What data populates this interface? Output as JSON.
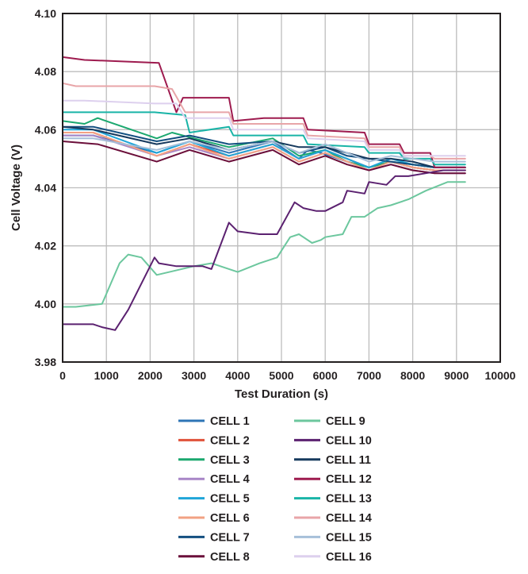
{
  "chart_data": {
    "type": "line",
    "title": "",
    "xlabel": "Test Duration (s)",
    "ylabel": "Cell Voltage (V)",
    "xlim": [
      0,
      10000
    ],
    "ylim": [
      3.98,
      4.1
    ],
    "x_ticks": [
      0,
      1000,
      2000,
      3000,
      4000,
      5000,
      6000,
      7000,
      8000,
      9000,
      10000
    ],
    "x_tick_labels": [
      "0",
      "1000",
      "2000",
      "3000",
      "4000",
      "5000",
      "6000",
      "7000",
      "8000",
      "9000",
      "10000"
    ],
    "y_ticks": [
      3.98,
      4.0,
      4.02,
      4.04,
      4.06,
      4.08,
      4.1
    ],
    "y_tick_labels": [
      "3.98",
      "4.00",
      "4.02",
      "4.04",
      "4.06",
      "4.08",
      "4.10"
    ],
    "grid": true,
    "legend_position": "bottom",
    "series": [
      {
        "name": "CELL 1",
        "color": "#2e75b6",
        "x": [
          0,
          700,
          2150,
          2900,
          3800,
          4800,
          5400,
          5600,
          5900,
          6500,
          7000,
          7500,
          8000,
          8500,
          9200
        ],
        "y": [
          4.058,
          4.058,
          4.052,
          4.056,
          4.052,
          4.056,
          4.05,
          4.053,
          4.052,
          4.049,
          4.047,
          4.049,
          4.047,
          4.046,
          4.046
        ]
      },
      {
        "name": "CELL 2",
        "color": "#e0523a",
        "x": [
          0,
          700,
          2150,
          2900,
          3800,
          4800,
          5400,
          6000,
          6500,
          7000,
          7500,
          8000,
          8500,
          9200
        ],
        "y": [
          4.059,
          4.059,
          4.051,
          4.055,
          4.051,
          4.055,
          4.05,
          4.053,
          4.05,
          4.047,
          4.049,
          4.047,
          4.046,
          4.046
        ]
      },
      {
        "name": "CELL 3",
        "color": "#1ba86f",
        "x": [
          0,
          500,
          800,
          2150,
          2500,
          3000,
          3800,
          4800,
          5400,
          6000,
          6500,
          7000,
          7500,
          8000,
          8500,
          9200
        ],
        "y": [
          4.063,
          4.062,
          4.064,
          4.057,
          4.059,
          4.057,
          4.054,
          4.057,
          4.051,
          4.053,
          4.049,
          4.047,
          4.049,
          4.048,
          4.047,
          4.047
        ]
      },
      {
        "name": "CELL 4",
        "color": "#a886c7",
        "x": [
          0,
          700,
          2150,
          2900,
          3800,
          4800,
          5400,
          6000,
          6500,
          7000,
          7500,
          8000,
          8500,
          9200
        ],
        "y": [
          4.058,
          4.058,
          4.051,
          4.054,
          4.05,
          4.054,
          4.049,
          4.052,
          4.049,
          4.046,
          4.048,
          4.046,
          4.045,
          4.045
        ]
      },
      {
        "name": "CELL 5",
        "color": "#1fa5d8",
        "x": [
          0,
          700,
          2150,
          2900,
          3800,
          4800,
          5400,
          6000,
          6500,
          7000,
          7500,
          8000,
          8500,
          9200
        ],
        "y": [
          4.06,
          4.06,
          4.052,
          4.056,
          4.051,
          4.055,
          4.05,
          4.053,
          4.05,
          4.047,
          4.05,
          4.048,
          4.047,
          4.047
        ]
      },
      {
        "name": "CELL 6",
        "color": "#f2a183",
        "x": [
          0,
          700,
          2150,
          2900,
          3800,
          4800,
          5400,
          6000,
          6500,
          7000,
          7500,
          8000,
          8500,
          9200
        ],
        "y": [
          4.059,
          4.059,
          4.051,
          4.055,
          4.05,
          4.054,
          4.049,
          4.052,
          4.049,
          4.046,
          4.049,
          4.047,
          4.046,
          4.046
        ]
      },
      {
        "name": "CELL 7",
        "color": "#134f80",
        "x": [
          0,
          700,
          2150,
          2900,
          3800,
          4800,
          5400,
          6000,
          6500,
          7000,
          7500,
          8000,
          8500,
          9200
        ],
        "y": [
          4.061,
          4.061,
          4.056,
          4.058,
          4.055,
          4.056,
          4.052,
          4.054,
          4.051,
          4.05,
          4.049,
          4.048,
          4.047,
          4.047
        ]
      },
      {
        "name": "CELL 8",
        "color": "#6b0f3a",
        "x": [
          0,
          800,
          2150,
          2900,
          3800,
          4800,
          5400,
          6000,
          6500,
          7000,
          7500,
          8000,
          8500,
          9200
        ],
        "y": [
          4.056,
          4.055,
          4.049,
          4.053,
          4.049,
          4.053,
          4.048,
          4.051,
          4.048,
          4.046,
          4.048,
          4.046,
          4.045,
          4.045
        ]
      },
      {
        "name": "CELL 9",
        "color": "#6cc79e",
        "x": [
          0,
          300,
          900,
          1300,
          1500,
          1800,
          2150,
          3000,
          3400,
          4000,
          4500,
          4900,
          5200,
          5400,
          5700,
          5900,
          6000,
          6400,
          6600,
          6900,
          7200,
          7500,
          7900,
          8300,
          8800,
          9200
        ],
        "y": [
          3.999,
          3.999,
          4.0,
          4.014,
          4.017,
          4.016,
          4.01,
          4.013,
          4.014,
          4.011,
          4.014,
          4.016,
          4.023,
          4.024,
          4.021,
          4.022,
          4.023,
          4.024,
          4.03,
          4.03,
          4.033,
          4.034,
          4.036,
          4.039,
          4.042,
          4.042
        ]
      },
      {
        "name": "CELL 10",
        "color": "#5b2170",
        "x": [
          0,
          700,
          900,
          1200,
          1500,
          2100,
          2200,
          2600,
          3200,
          3400,
          3800,
          4000,
          4500,
          4900,
          5300,
          5500,
          5800,
          6000,
          6400,
          6500,
          6900,
          7000,
          7400,
          7600,
          7900,
          8300,
          8700,
          9200
        ],
        "y": [
          3.993,
          3.993,
          3.992,
          3.991,
          3.998,
          4.016,
          4.014,
          4.013,
          4.013,
          4.012,
          4.028,
          4.025,
          4.024,
          4.024,
          4.035,
          4.033,
          4.032,
          4.032,
          4.035,
          4.039,
          4.038,
          4.042,
          4.041,
          4.044,
          4.044,
          4.045,
          4.046,
          4.046
        ]
      },
      {
        "name": "CELL 11",
        "color": "#173a5e",
        "x": [
          0,
          700,
          2150,
          2900,
          3800,
          4800,
          5400,
          6000,
          6500,
          7000,
          7500,
          8000,
          8500,
          9200
        ],
        "y": [
          4.061,
          4.06,
          4.055,
          4.057,
          4.053,
          4.056,
          4.054,
          4.054,
          4.052,
          4.05,
          4.05,
          4.049,
          4.047,
          4.047
        ]
      },
      {
        "name": "CELL 12",
        "color": "#9e1b4f",
        "x": [
          0,
          500,
          2200,
          2600,
          2750,
          3800,
          3900,
          4600,
          5500,
          5600,
          6900,
          7000,
          7700,
          7800,
          8400,
          8500,
          9200
        ],
        "y": [
          4.085,
          4.084,
          4.083,
          4.066,
          4.071,
          4.071,
          4.063,
          4.064,
          4.064,
          4.06,
          4.059,
          4.055,
          4.055,
          4.052,
          4.052,
          4.047,
          4.047
        ]
      },
      {
        "name": "CELL 13",
        "color": "#19b4a7",
        "x": [
          0,
          400,
          2100,
          2800,
          2900,
          3800,
          3900,
          4700,
          5500,
          5600,
          6900,
          7000,
          7700,
          7800,
          8400,
          8500,
          9200
        ],
        "y": [
          4.066,
          4.066,
          4.066,
          4.065,
          4.059,
          4.061,
          4.058,
          4.058,
          4.058,
          4.055,
          4.054,
          4.052,
          4.052,
          4.05,
          4.05,
          4.048,
          4.048
        ]
      },
      {
        "name": "CELL 14",
        "color": "#e8a5a8",
        "x": [
          0,
          300,
          2100,
          2500,
          2800,
          3800,
          3900,
          4600,
          5500,
          5600,
          6900,
          7000,
          7700,
          7800,
          8400,
          8500,
          9200
        ],
        "y": [
          4.076,
          4.075,
          4.075,
          4.074,
          4.066,
          4.066,
          4.062,
          4.062,
          4.062,
          4.058,
          4.057,
          4.054,
          4.054,
          4.051,
          4.051,
          4.05,
          4.05
        ]
      },
      {
        "name": "CELL 15",
        "color": "#a6bfd9",
        "x": [
          0,
          700,
          2150,
          2900,
          3800,
          4800,
          5400,
          6000,
          6500,
          7000,
          7500,
          8000,
          8500,
          9200
        ],
        "y": [
          4.057,
          4.057,
          4.053,
          4.056,
          4.053,
          4.056,
          4.052,
          4.055,
          4.052,
          4.049,
          4.051,
          4.05,
          4.049,
          4.049
        ]
      },
      {
        "name": "CELL 16",
        "color": "#ddd0ee",
        "x": [
          0,
          500,
          2100,
          2600,
          2800,
          3800,
          3900,
          4600,
          5500,
          5600,
          6900,
          7000,
          7700,
          7800,
          8400,
          8500,
          9200
        ],
        "y": [
          4.07,
          4.07,
          4.069,
          4.069,
          4.064,
          4.064,
          4.06,
          4.06,
          4.06,
          4.057,
          4.056,
          4.053,
          4.053,
          4.051,
          4.051,
          4.051,
          4.051
        ]
      }
    ]
  }
}
